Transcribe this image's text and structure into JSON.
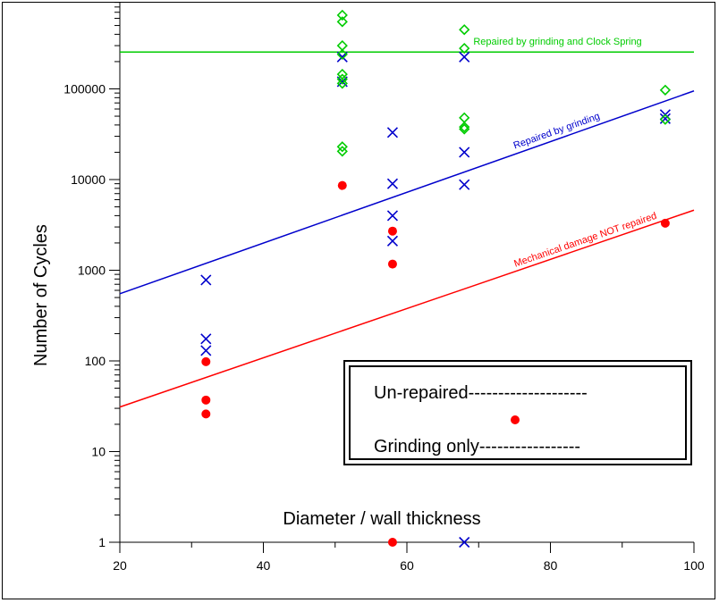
{
  "chart_data": {
    "type": "scatter",
    "title": "",
    "xlabel": "Diameter / wall thickness",
    "ylabel": "Number of Cycles",
    "xlim": [
      20,
      100
    ],
    "ylim": [
      1,
      1000000
    ],
    "yscale": "log",
    "x_ticks": [
      "20",
      "40",
      "60",
      "80",
      "100"
    ],
    "y_ticks": [
      "1",
      "10",
      "100",
      "1000",
      "10000",
      "100000"
    ],
    "grid": false,
    "legend": {
      "placement": "lower-right",
      "entries": [
        "Un-repaired--------------------",
        "Grinding only-----------------"
      ]
    },
    "series": [
      {
        "marker": "filled-circle",
        "color": "#ff0000",
        "points": [
          [
            32,
            98
          ],
          [
            32,
            37
          ],
          [
            32,
            26
          ],
          [
            51,
            8600
          ],
          [
            58,
            2700
          ],
          [
            58,
            1170
          ],
          [
            96,
            3300
          ],
          [
            58,
            1
          ]
        ]
      },
      {
        "marker": "x",
        "color": "#0000cc",
        "points": [
          [
            32,
            780
          ],
          [
            32,
            175
          ],
          [
            32,
            130
          ],
          [
            51,
            225000
          ],
          [
            51,
            120000
          ],
          [
            58,
            33000
          ],
          [
            58,
            9000
          ],
          [
            58,
            4000
          ],
          [
            58,
            2100
          ],
          [
            68,
            225000
          ],
          [
            68,
            20000
          ],
          [
            68,
            8800
          ],
          [
            96,
            52000
          ],
          [
            96,
            47000
          ],
          [
            68,
            1
          ]
        ]
      },
      {
        "marker": "diamond",
        "color": "#00cc00",
        "points": [
          [
            51,
            650000
          ],
          [
            51,
            550000
          ],
          [
            51,
            300000
          ],
          [
            51,
            240000
          ],
          [
            51,
            145000
          ],
          [
            51,
            128000
          ],
          [
            51,
            115000
          ],
          [
            51,
            23000
          ],
          [
            51,
            20500
          ],
          [
            68,
            450000
          ],
          [
            68,
            280000
          ],
          [
            68,
            48000
          ],
          [
            68,
            38000
          ],
          [
            68,
            36000
          ],
          [
            96,
            97000
          ],
          [
            96,
            46000
          ]
        ]
      }
    ],
    "reference_lines": [
      {
        "label": "Repaired by grinding and Clock Spring",
        "color": "#00cc00",
        "from": [
          20,
          255000
        ],
        "to": [
          100,
          255000
        ]
      },
      {
        "label": "Repaired by grinding",
        "color": "#0000cc",
        "from": [
          20,
          550
        ],
        "to": [
          100,
          95000
        ]
      },
      {
        "label": "Mechanical damage NOT repaired",
        "color": "#ff0000",
        "from": [
          20,
          31
        ],
        "to": [
          100,
          4600
        ]
      }
    ]
  }
}
